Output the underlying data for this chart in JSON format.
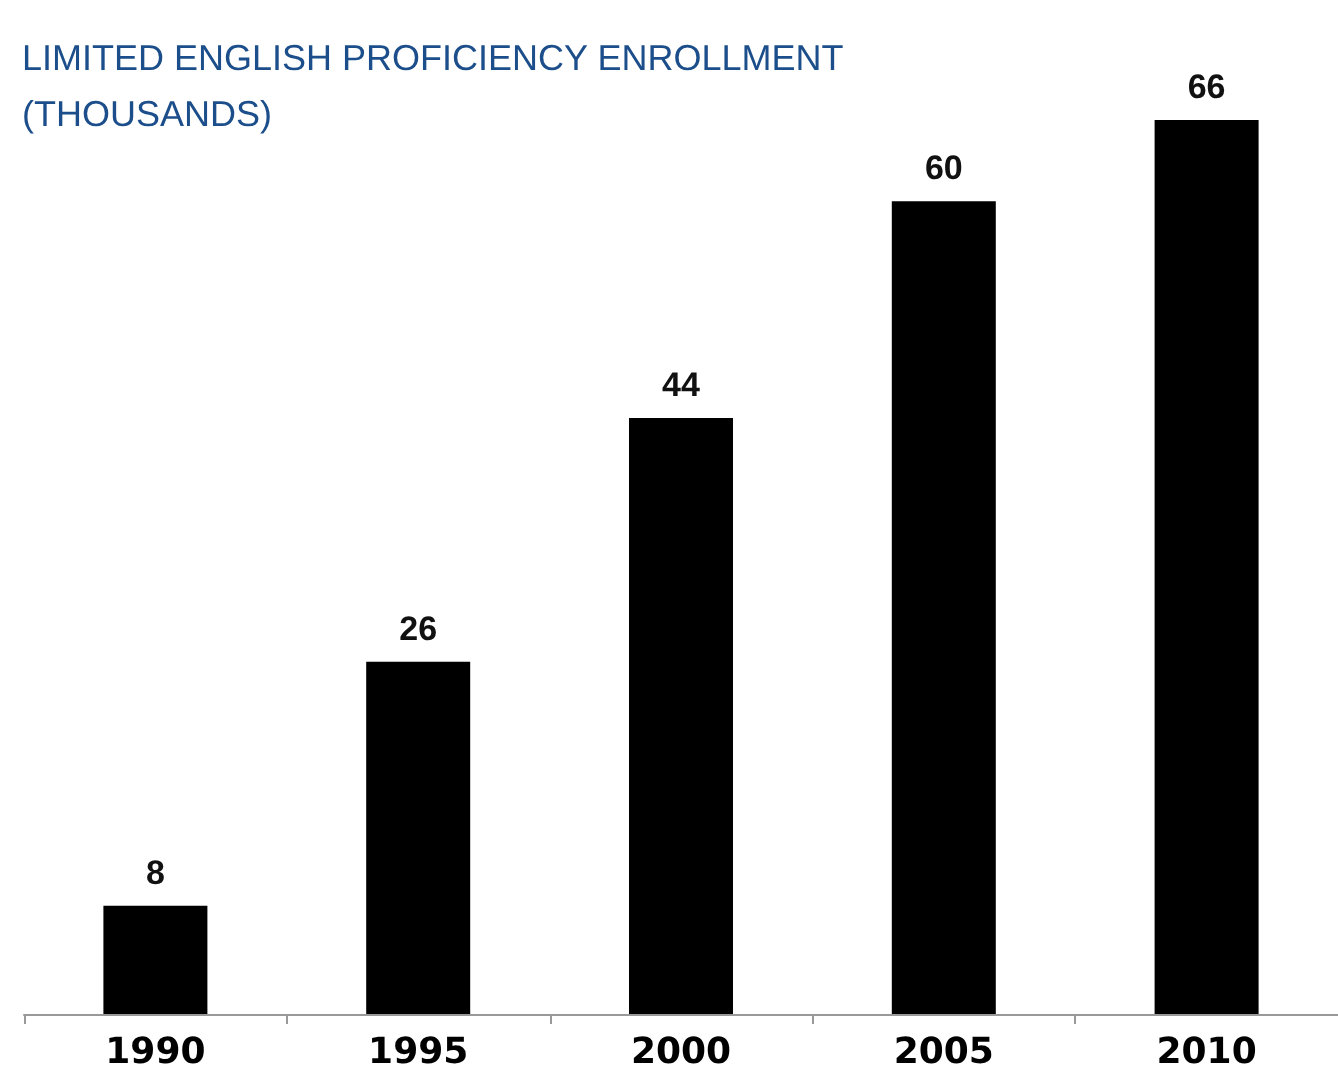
{
  "chart_data": {
    "type": "bar",
    "title": "LIMITED ENGLISH PROFICIENCY ENROLLMENT (THOUSANDS)",
    "categories": [
      "1990",
      "1995",
      "2000",
      "2005",
      "2010"
    ],
    "values": [
      8,
      26,
      44,
      60,
      66
    ],
    "color": "#000000",
    "data_labels": true
  }
}
